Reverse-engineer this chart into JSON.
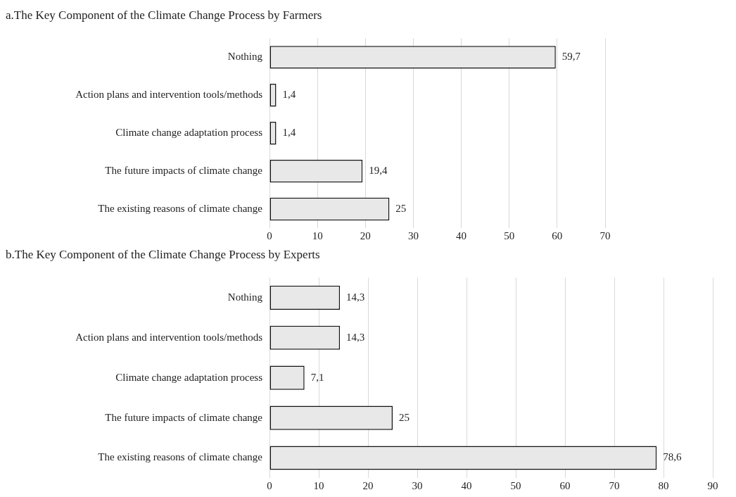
{
  "chart_data": [
    {
      "type": "bar",
      "orientation": "horizontal",
      "title": "a.The Key Component of the Climate Change Process by Farmers",
      "categories": [
        "Nothing",
        "Action plans and intervention tools/methods",
        "Climate change adaptation process",
        "The future impacts of climate change",
        "The existing reasons of climate change"
      ],
      "values": [
        59.7,
        1.4,
        1.4,
        19.4,
        25
      ],
      "value_labels": [
        "59,7",
        "1,4",
        "1,4",
        "19,4",
        "25"
      ],
      "color": "#e8e8e8",
      "xlim": [
        0,
        70
      ],
      "xticks": [
        0,
        10,
        20,
        30,
        40,
        50,
        60,
        70
      ],
      "grid": "x",
      "legend": false
    },
    {
      "type": "bar",
      "orientation": "horizontal",
      "title": "b.The Key Component of the Climate Change Process by Experts",
      "categories": [
        "Nothing",
        "Action plans and intervention tools/methods",
        "Climate change adaptation process",
        "The future impacts of climate change",
        "The existing reasons of climate change"
      ],
      "values": [
        14.3,
        14.3,
        7.1,
        25,
        78.6
      ],
      "value_labels": [
        "14,3",
        "14,3",
        "7,1",
        "25",
        "78,6"
      ],
      "color": "#e8e8e8",
      "xlim": [
        0,
        90
      ],
      "xticks": [
        0,
        10,
        20,
        30,
        40,
        50,
        60,
        70,
        80,
        90
      ],
      "grid": "x",
      "legend": false
    }
  ]
}
